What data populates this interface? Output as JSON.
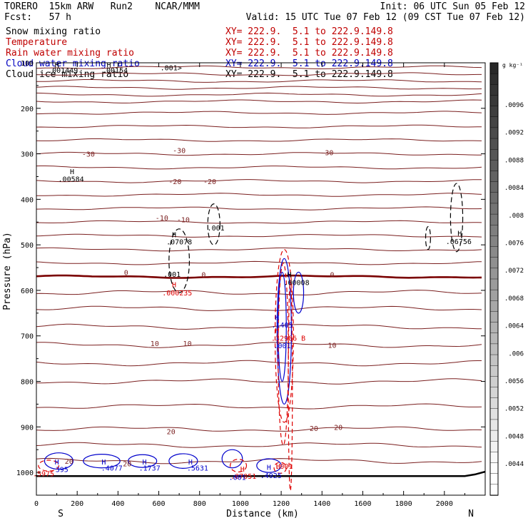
{
  "header": {
    "model": "TORERO  15km ARW   Run2    NCAR/MMM",
    "fcst": "Fcst:   57 h",
    "init": "Init: 06 UTC Sun 05 Feb 12",
    "valid": "Valid: 15 UTC Tue 07 Feb 12 (09 CST Tue 07 Feb 12)"
  },
  "fields": [
    {
      "name": "Snow mixing ratio",
      "xy": "XY= 222.9.  5.1 to 222.9.149.8",
      "color": "#000000"
    },
    {
      "name": "Temperature",
      "xy": "XY= 222.9.  5.1 to 222.9.149.8",
      "color": "#c00000"
    },
    {
      "name": "Rain water mixing ratio",
      "xy": "XY= 222.9.  5.1 to 222.9.149.8",
      "color": "#c00000"
    },
    {
      "name": "Cloud water mixing ratio",
      "xy": "XY= 222.9.  5.1 to 222.9.149.8",
      "color": "#0000c0"
    },
    {
      "name": "Cloud ice mixing ratio",
      "xy": "XY= 222.9.  5.1 to 222.9.149.8",
      "color": "#000000"
    }
  ],
  "colors": {
    "temperature": "#7a1f1f",
    "zero_isotherm": "#7a0000",
    "rain": "#dd0000",
    "cloud_water": "#0000cc",
    "snow": "#000000",
    "ground": "#000000"
  },
  "chart_data": {
    "type": "contour",
    "xlabel": "Distance (km)",
    "ylabel": "Pressure (hPa)",
    "xlim": [
      0,
      2200
    ],
    "ylim": [
      1050,
      100
    ],
    "x_ticks": [
      0,
      200,
      400,
      600,
      800,
      1000,
      1200,
      1400,
      1600,
      1800,
      2000
    ],
    "y_ticks": [
      100,
      200,
      300,
      400,
      500,
      600,
      700,
      800,
      900,
      1000
    ],
    "x_ends": [
      "S",
      "N"
    ],
    "colorbar": {
      "unit": "g kg⁻¹",
      "ticks": [
        ".0096",
        ".0092",
        ".0088",
        ".0084",
        ".008",
        ".0076",
        ".0072",
        ".0068",
        ".0064",
        ".006",
        ".0056",
        ".0052",
        ".0048",
        ".0044"
      ]
    },
    "temperature_isotherms": {
      "levels_upper": [
        110,
        125,
        140,
        155,
        170,
        185,
        210,
        240,
        270,
        300,
        330,
        360,
        390,
        420,
        450,
        480,
        510,
        540
      ],
      "zero_level": 570,
      "levels_lower": [
        605,
        640,
        680,
        720,
        760,
        800,
        855,
        905,
        940,
        975
      ],
      "labels": [
        {
          "x": 255,
          "p": 300,
          "text": "-30"
        },
        {
          "x": 700,
          "p": 292,
          "text": "-30"
        },
        {
          "x": 1425,
          "p": 297,
          "text": "-30"
        },
        {
          "x": 680,
          "p": 360,
          "text": "-20"
        },
        {
          "x": 850,
          "p": 360,
          "text": "-20"
        },
        {
          "x": 615,
          "p": 440,
          "text": "-10"
        },
        {
          "x": 720,
          "p": 444,
          "text": "-10"
        },
        {
          "x": 440,
          "p": 560,
          "text": "0"
        },
        {
          "x": 820,
          "p": 565,
          "text": "0"
        },
        {
          "x": 1450,
          "p": 565,
          "text": "0"
        },
        {
          "x": 580,
          "p": 716,
          "text": "10"
        },
        {
          "x": 740,
          "p": 716,
          "text": "10"
        },
        {
          "x": 1450,
          "p": 720,
          "text": "10"
        },
        {
          "x": 660,
          "p": 910,
          "text": "20"
        },
        {
          "x": 1360,
          "p": 903,
          "text": "20"
        },
        {
          "x": 1480,
          "p": 900,
          "text": "20"
        },
        {
          "x": 160,
          "p": 975,
          "text": "20"
        },
        {
          "x": 445,
          "p": 980,
          "text": "20"
        }
      ]
    },
    "annotations": [
      {
        "x": 175,
        "p": 338,
        "text": "H",
        "color": "snow"
      },
      {
        "x": 170,
        "p": 355,
        "text": ".00584",
        "color": "snow"
      },
      {
        "x": 675,
        "p": 477,
        "text": "H",
        "color": "snow"
      },
      {
        "x": 700,
        "p": 493,
        "text": ".07078",
        "color": "snow"
      },
      {
        "x": 880,
        "p": 462,
        "text": ".001",
        "color": "snow"
      },
      {
        "x": 665,
        "p": 564,
        "text": ".001",
        "color": "snow"
      },
      {
        "x": 2075,
        "p": 474,
        "text": "H",
        "color": "snow"
      },
      {
        "x": 2070,
        "p": 492,
        "text": ".06756",
        "color": "snow"
      },
      {
        "x": 1240,
        "p": 565,
        "text": "H",
        "color": "snow"
      },
      {
        "x": 1275,
        "p": 582,
        "text": ".00008",
        "color": "snow"
      },
      {
        "x": 675,
        "p": 587,
        "text": "H",
        "color": "rain"
      },
      {
        "x": 690,
        "p": 605,
        "text": ".000235",
        "color": "rain"
      },
      {
        "x": 1180,
        "p": 659,
        "text": "H",
        "color": "cloud_water"
      },
      {
        "x": 1205,
        "p": 675,
        "text": ".1405",
        "color": "cloud_water"
      },
      {
        "x": 1180,
        "p": 687,
        "text": "H",
        "color": "rain"
      },
      {
        "x": 1235,
        "p": 704,
        "text": ".32986 B",
        "color": "rain"
      },
      {
        "x": 1205,
        "p": 721,
        "text": ".001",
        "color": "cloud_water"
      },
      {
        "x": 100,
        "p": 976,
        "text": "H",
        "color": "cloud_water"
      },
      {
        "x": 125,
        "p": 993,
        "text": "395",
        "color": "cloud_water"
      },
      {
        "x": 35,
        "p": 1002,
        "text": ".5975",
        "color": "rain"
      },
      {
        "x": 330,
        "p": 976,
        "text": "H",
        "color": "cloud_water"
      },
      {
        "x": 370,
        "p": 990,
        "text": ".4077",
        "color": "cloud_water"
      },
      {
        "x": 530,
        "p": 976,
        "text": "H",
        "color": "cloud_water"
      },
      {
        "x": 555,
        "p": 990,
        "text": ".1737",
        "color": "cloud_water"
      },
      {
        "x": 755,
        "p": 976,
        "text": "H",
        "color": "cloud_water"
      },
      {
        "x": 790,
        "p": 990,
        "text": ".5631",
        "color": "cloud_water"
      },
      {
        "x": 1010,
        "p": 992,
        "text": "H",
        "color": "rain"
      },
      {
        "x": 1015,
        "p": 1008,
        "text": ".07051",
        "color": "rain"
      },
      {
        "x": 985,
        "p": 1010,
        "text": ".001",
        "color": "cloud_water"
      },
      {
        "x": 1140,
        "p": 988,
        "text": "H",
        "color": "cloud_water"
      },
      {
        "x": 1150,
        "p": 1006,
        "text": ".4925",
        "color": "cloud_water"
      },
      {
        "x": 1185,
        "p": 986,
        "text": "H",
        "color": "rain"
      },
      {
        "x": 1215,
        "p": 986,
        "text": ".001",
        "color": "rain"
      },
      {
        "x": 100,
        "p": 104,
        "text": "H",
        "color": "snow"
      },
      {
        "x": 130,
        "p": 116,
        "text": ".001449",
        "color": "snow"
      },
      {
        "x": 355,
        "p": 104,
        "text": "H",
        "color": "snow"
      },
      {
        "x": 385,
        "p": 116,
        "text": ".00154",
        "color": "snow"
      },
      {
        "x": 660,
        "p": 110,
        "text": ".001>",
        "color": "snow"
      }
    ]
  }
}
